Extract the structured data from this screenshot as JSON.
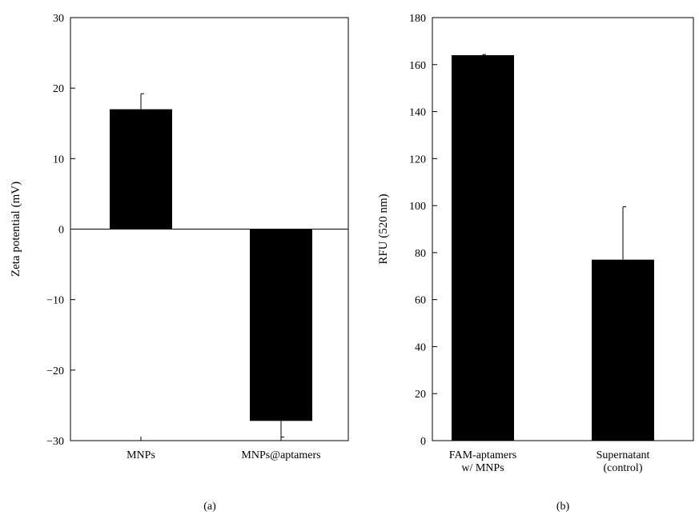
{
  "chart_data": [
    {
      "type": "bar",
      "panel_label": "(a)",
      "ylabel": "Zeta potential (mV)",
      "xlabel": "",
      "ylim": [
        -30,
        30
      ],
      "yticks": [
        -30,
        -20,
        -10,
        0,
        10,
        20,
        30
      ],
      "categories": [
        [
          "MNPs"
        ],
        [
          "MNPs@aptamers"
        ]
      ],
      "values": [
        17,
        -27.2
      ],
      "errors": [
        2.2,
        2.3
      ],
      "grid": false,
      "legend": "none",
      "bar_color": "#000000"
    },
    {
      "type": "bar",
      "panel_label": "(b)",
      "ylabel": "RFU (520 nm)",
      "xlabel": "",
      "ylim": [
        0,
        180
      ],
      "yticks": [
        0,
        20,
        40,
        60,
        80,
        100,
        120,
        140,
        160,
        180
      ],
      "categories": [
        [
          "FAM-aptamers",
          "w/ MNPs"
        ],
        [
          "Supernatant",
          "(control)"
        ]
      ],
      "values": [
        164,
        77
      ],
      "errors": [
        0.3,
        22.5
      ],
      "grid": false,
      "legend": "none",
      "bar_color": "#000000"
    }
  ]
}
